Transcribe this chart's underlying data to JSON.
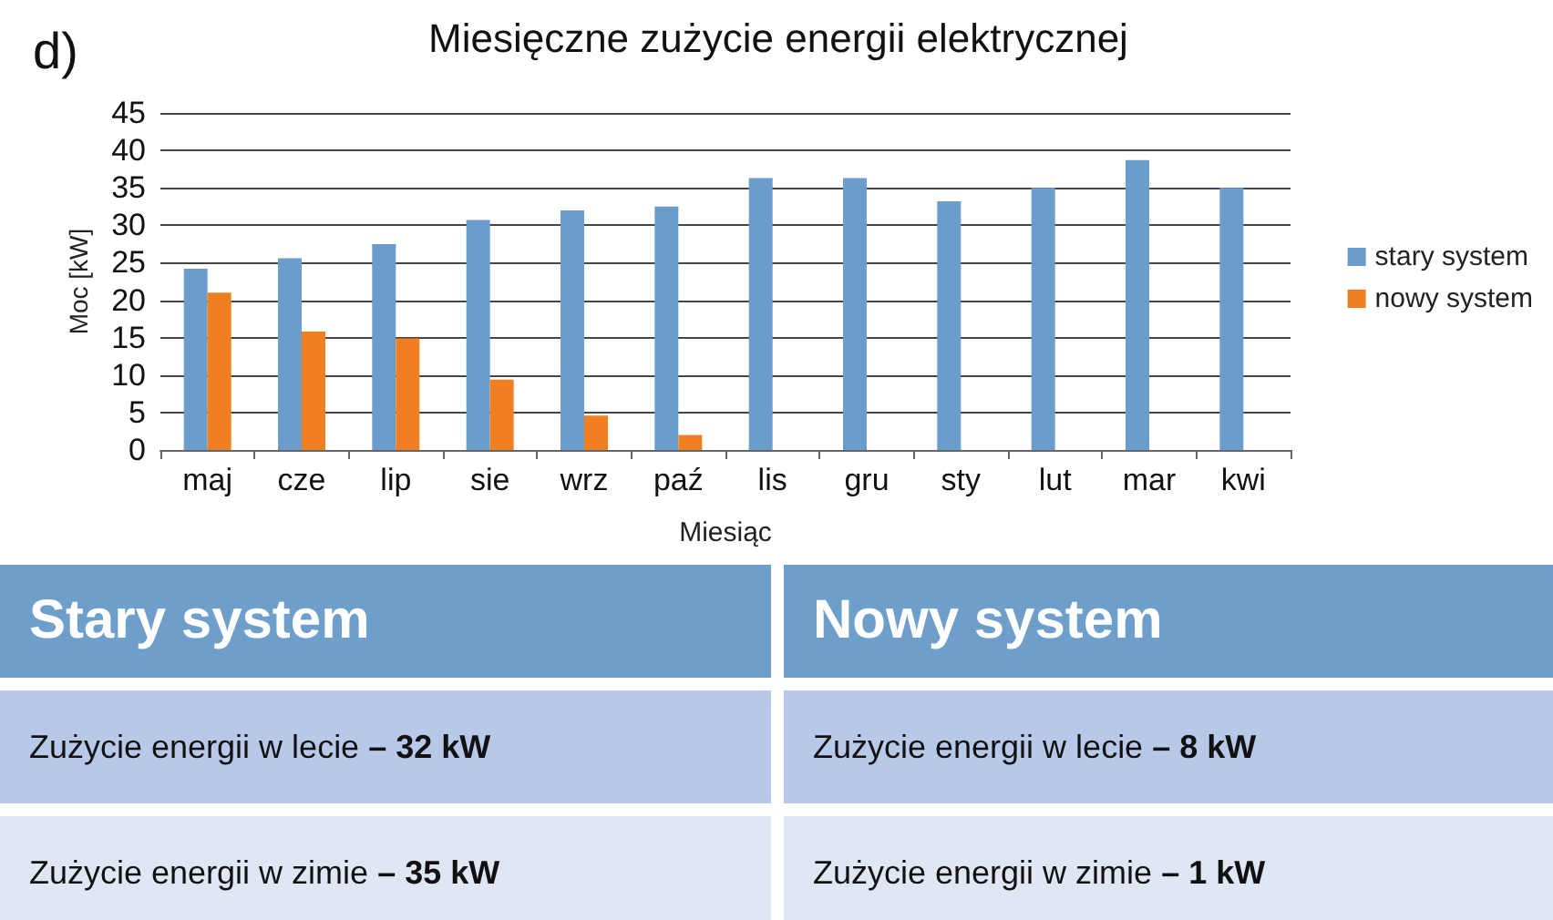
{
  "chart_data": [
    {
      "type": "bar",
      "title": "Miesięczne zużycie energii elektrycznej",
      "xlabel": "Miesiąc",
      "ylabel": "Moc [kW]",
      "annotations": [
        "d)"
      ],
      "categories": [
        "maj",
        "cze",
        "lip",
        "sie",
        "wrz",
        "paź",
        "lis",
        "gru",
        "sty",
        "lut",
        "mar",
        "kwi"
      ],
      "series": [
        {
          "name": "stary system",
          "color": "#6a9ccc",
          "values": [
            24.2,
            25.6,
            27.5,
            30.7,
            32,
            32.5,
            36.3,
            36.3,
            33.2,
            35,
            38.7,
            35
          ]
        },
        {
          "name": "nowy system",
          "color": "#f07f21",
          "values": [
            21,
            15.8,
            14.9,
            9.4,
            4.6,
            2,
            null,
            null,
            null,
            null,
            null,
            null
          ]
        }
      ],
      "ylim": [
        0,
        45
      ],
      "yticks": [
        0,
        5,
        10,
        15,
        20,
        25,
        30,
        35,
        40,
        45
      ],
      "grid": "y",
      "legend": "right"
    },
    {
      "type": "other",
      "annotations": [
        "Stary system",
        "Nowy system",
        "Zużycie energii w lecie – 32 kW",
        "Zużycie energii w lecie – 8 kW",
        "Zużycie energii w zimie – 35 kW",
        "Zużycie energii w zimie – 1 kW"
      ]
    }
  ]
}
